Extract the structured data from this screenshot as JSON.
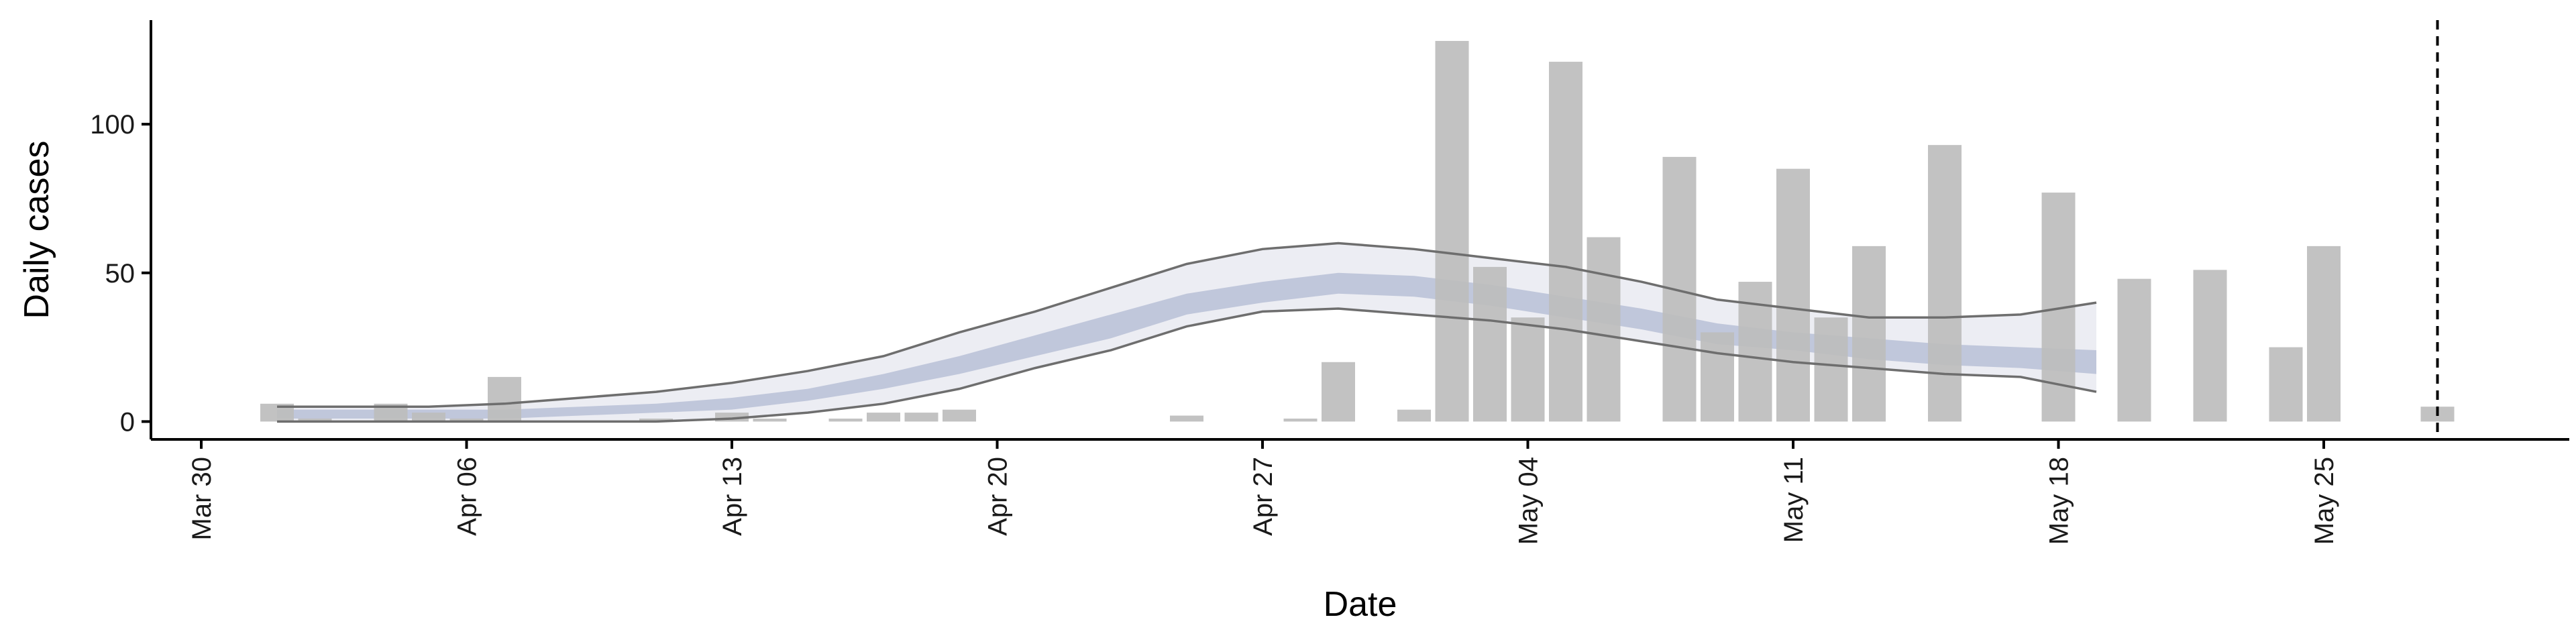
{
  "chart_data": {
    "type": "bar",
    "xlabel": "Date",
    "ylabel": "Daily cases",
    "x_tick_labels": [
      "Mar 30",
      "Apr 06",
      "Apr 13",
      "Apr 20",
      "Apr 27",
      "May 04",
      "May 11",
      "May 18",
      "May 25"
    ],
    "x_tick_dates": [
      "2020-03-30",
      "2020-04-06",
      "2020-04-13",
      "2020-04-20",
      "2020-04-27",
      "2020-05-04",
      "2020-05-11",
      "2020-05-18",
      "2020-05-25"
    ],
    "y_ticks": [
      0,
      50,
      100
    ],
    "xlim": [
      "2020-03-30",
      "2020-05-31"
    ],
    "ylim": [
      -6,
      135
    ],
    "grid": false,
    "legend": "none",
    "vline_date": "2020-05-28",
    "colors": {
      "bars": "#bdbdbd",
      "outer_band": "#eaebf2",
      "inner_band": "#b8c0d6",
      "band_lines": "#6e6e6e",
      "axis": "#000000"
    },
    "bars": [
      {
        "date": "2020-04-01",
        "value": 6
      },
      {
        "date": "2020-04-02",
        "value": 1
      },
      {
        "date": "2020-04-04",
        "value": 6
      },
      {
        "date": "2020-04-05",
        "value": 3
      },
      {
        "date": "2020-04-06",
        "value": 1
      },
      {
        "date": "2020-04-07",
        "value": 15
      },
      {
        "date": "2020-04-11",
        "value": 1
      },
      {
        "date": "2020-04-13",
        "value": 3
      },
      {
        "date": "2020-04-14",
        "value": 1
      },
      {
        "date": "2020-04-16",
        "value": 1
      },
      {
        "date": "2020-04-17",
        "value": 3
      },
      {
        "date": "2020-04-18",
        "value": 3
      },
      {
        "date": "2020-04-19",
        "value": 4
      },
      {
        "date": "2020-04-25",
        "value": 2
      },
      {
        "date": "2020-04-28",
        "value": 1
      },
      {
        "date": "2020-04-29",
        "value": 20
      },
      {
        "date": "2020-05-01",
        "value": 4
      },
      {
        "date": "2020-05-02",
        "value": 128
      },
      {
        "date": "2020-05-03",
        "value": 52
      },
      {
        "date": "2020-05-04",
        "value": 35
      },
      {
        "date": "2020-05-05",
        "value": 121
      },
      {
        "date": "2020-05-06",
        "value": 62
      },
      {
        "date": "2020-05-08",
        "value": 89
      },
      {
        "date": "2020-05-09",
        "value": 30
      },
      {
        "date": "2020-05-10",
        "value": 47
      },
      {
        "date": "2020-05-11",
        "value": 85
      },
      {
        "date": "2020-05-12",
        "value": 35
      },
      {
        "date": "2020-05-13",
        "value": 59
      },
      {
        "date": "2020-05-15",
        "value": 93
      },
      {
        "date": "2020-05-18",
        "value": 77
      },
      {
        "date": "2020-05-20",
        "value": 48
      },
      {
        "date": "2020-05-22",
        "value": 51
      },
      {
        "date": "2020-05-24",
        "value": 25
      },
      {
        "date": "2020-05-25",
        "value": 59
      },
      {
        "date": "2020-05-28",
        "value": 5
      }
    ],
    "estimate_band": {
      "dates": [
        "2020-04-01",
        "2020-04-03",
        "2020-04-05",
        "2020-04-07",
        "2020-04-09",
        "2020-04-11",
        "2020-04-13",
        "2020-04-15",
        "2020-04-17",
        "2020-04-19",
        "2020-04-21",
        "2020-04-23",
        "2020-04-25",
        "2020-04-27",
        "2020-04-29",
        "2020-05-01",
        "2020-05-03",
        "2020-05-05",
        "2020-05-07",
        "2020-05-09",
        "2020-05-11",
        "2020-05-13",
        "2020-05-15",
        "2020-05-17",
        "2020-05-19"
      ],
      "outer_upper": [
        5,
        5,
        5,
        6,
        8,
        10,
        13,
        17,
        22,
        30,
        37,
        45,
        53,
        58,
        60,
        58,
        55,
        52,
        47,
        41,
        38,
        35,
        35,
        36,
        40
      ],
      "inner_upper": [
        4,
        4,
        4,
        4,
        5,
        6,
        8,
        11,
        16,
        22,
        29,
        36,
        43,
        47,
        50,
        49,
        46,
        42,
        38,
        33,
        30,
        28,
        26,
        25,
        24
      ],
      "inner_lower": [
        1,
        1,
        1,
        1,
        2,
        3,
        4,
        7,
        11,
        16,
        22,
        28,
        36,
        40,
        43,
        42,
        39,
        35,
        31,
        26,
        24,
        21,
        19,
        18,
        16
      ],
      "outer_lower": [
        0,
        0,
        0,
        0,
        0,
        0,
        1,
        3,
        6,
        11,
        18,
        24,
        32,
        37,
        38,
        36,
        34,
        31,
        27,
        23,
        20,
        18,
        16,
        15,
        10
      ]
    }
  }
}
